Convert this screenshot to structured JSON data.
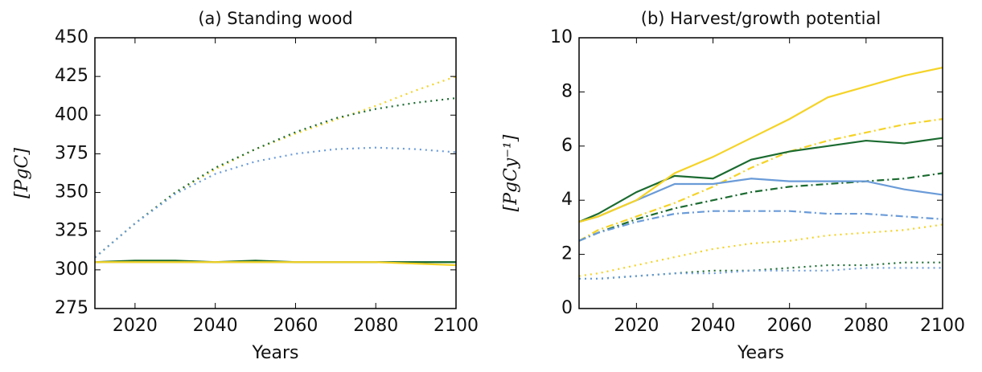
{
  "chart_data": [
    {
      "type": "line",
      "title": "(a) Standing wood",
      "xlabel": "Years",
      "ylabel": "[PgC]",
      "x": [
        2010,
        2020,
        2030,
        2040,
        2050,
        2060,
        2070,
        2080,
        2090,
        2100
      ],
      "xlim": [
        2010,
        2100
      ],
      "xticks": [
        2020,
        2040,
        2060,
        2080,
        2100
      ],
      "ylim": [
        275,
        450
      ],
      "yticks": [
        275,
        300,
        325,
        350,
        375,
        400,
        425,
        450
      ],
      "series": [
        {
          "color": "#f5d327",
          "style": "dotted",
          "values": [
            308,
            330,
            350,
            365,
            378,
            388,
            397,
            406,
            416,
            425
          ]
        },
        {
          "color": "#1b6b30",
          "style": "dotted",
          "values": [
            308,
            330,
            350,
            366,
            378,
            389,
            398,
            404,
            408,
            411
          ]
        },
        {
          "color": "#6a9bd8",
          "style": "dotted",
          "values": [
            308,
            330,
            349,
            362,
            370,
            375,
            378,
            379,
            378,
            376
          ]
        },
        {
          "color": "#6a9bd8",
          "style": "solid",
          "values": [
            305,
            305,
            305,
            305,
            305,
            305,
            305,
            305,
            305,
            305
          ]
        },
        {
          "color": "#1b6b30",
          "style": "solid",
          "values": [
            305,
            306,
            306,
            305,
            306,
            305,
            305,
            305,
            305,
            305
          ]
        },
        {
          "color": "#f5d327",
          "style": "solid",
          "values": [
            305,
            305,
            305,
            305,
            305,
            305,
            305,
            305,
            304,
            303
          ]
        }
      ]
    },
    {
      "type": "line",
      "title": "(b) Harvest/growth potential",
      "xlabel": "Years",
      "ylabel": "[PgCy⁻¹]",
      "x": [
        2005,
        2010,
        2020,
        2030,
        2040,
        2050,
        2060,
        2070,
        2080,
        2090,
        2100
      ],
      "xlim": [
        2005,
        2100
      ],
      "xticks": [
        2020,
        2040,
        2060,
        2080,
        2100
      ],
      "ylim": [
        0,
        10
      ],
      "yticks": [
        0,
        2,
        4,
        6,
        8,
        10
      ],
      "series": [
        {
          "color": "#f5d327",
          "style": "dotted",
          "values": [
            1.2,
            1.3,
            1.6,
            1.9,
            2.2,
            2.4,
            2.5,
            2.7,
            2.8,
            2.9,
            3.1
          ]
        },
        {
          "color": "#1b6b30",
          "style": "dotted",
          "values": [
            1.1,
            1.1,
            1.2,
            1.3,
            1.4,
            1.4,
            1.5,
            1.6,
            1.6,
            1.7,
            1.7
          ]
        },
        {
          "color": "#6a9bd8",
          "style": "dotted",
          "values": [
            1.1,
            1.1,
            1.2,
            1.3,
            1.3,
            1.4,
            1.4,
            1.4,
            1.5,
            1.5,
            1.5
          ]
        },
        {
          "color": "#f5d327",
          "style": "dashdot",
          "values": [
            2.5,
            2.9,
            3.4,
            3.9,
            4.5,
            5.2,
            5.8,
            6.2,
            6.5,
            6.8,
            7.0
          ]
        },
        {
          "color": "#1b6b30",
          "style": "dashdot",
          "values": [
            2.5,
            2.8,
            3.3,
            3.7,
            4.0,
            4.3,
            4.5,
            4.6,
            4.7,
            4.8,
            5.0
          ]
        },
        {
          "color": "#6a9bd8",
          "style": "dashdot",
          "values": [
            2.5,
            2.8,
            3.2,
            3.5,
            3.6,
            3.6,
            3.6,
            3.5,
            3.5,
            3.4,
            3.3
          ]
        },
        {
          "color": "#6a9bd8",
          "style": "solid",
          "values": [
            3.2,
            3.4,
            4.0,
            4.6,
            4.6,
            4.8,
            4.7,
            4.7,
            4.7,
            4.4,
            4.2
          ]
        },
        {
          "color": "#1b6b30",
          "style": "solid",
          "values": [
            3.2,
            3.5,
            4.3,
            4.9,
            4.8,
            5.5,
            5.8,
            6.0,
            6.2,
            6.1,
            6.3
          ]
        },
        {
          "color": "#f5d327",
          "style": "solid",
          "values": [
            3.2,
            3.4,
            4.0,
            5.0,
            5.6,
            6.3,
            7.0,
            7.8,
            8.2,
            8.6,
            8.9
          ]
        }
      ]
    }
  ]
}
